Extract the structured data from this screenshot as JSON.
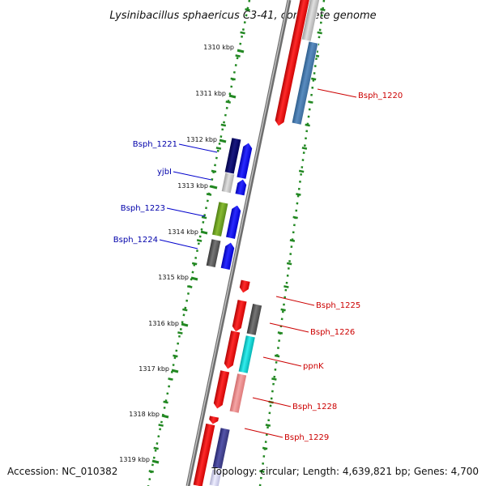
{
  "title": "Lysinibacillus sphaericus C3-41, complete genome",
  "footer": {
    "accession": "Accession: NC_010382",
    "topology": "Topology: circular; Length: 4,639,821 bp; Genes: 4,700"
  },
  "ticks": [
    "1310 kbp",
    "1311 kbp",
    "1312 kbp",
    "1313 kbp",
    "1314 kbp",
    "1315 kbp",
    "1316 kbp",
    "1317 kbp",
    "1318 kbp",
    "1319 kbp"
  ],
  "genes_reverse": [
    {
      "label": "Bsph_1221",
      "color": "#0000aa"
    },
    {
      "label": "yjbI",
      "color": "#0000aa"
    },
    {
      "label": "Bsph_1223",
      "color": "#0000aa"
    },
    {
      "label": "Bsph_1224",
      "color": "#0000aa"
    }
  ],
  "genes_forward": [
    {
      "label": "Bsph_1220",
      "color": "#cc0000"
    },
    {
      "label": "Bsph_1225",
      "color": "#cc0000"
    },
    {
      "label": "Bsph_1226",
      "color": "#cc0000"
    },
    {
      "label": "ppnK",
      "color": "#cc0000"
    },
    {
      "label": "Bsph_1228",
      "color": "#cc0000"
    },
    {
      "label": "Bsph_1229",
      "color": "#cc0000"
    }
  ],
  "colors": {
    "backbone": "#888888",
    "tick_marks": "#228822",
    "forward_strand": "#ff0000",
    "reverse_strand": "#0000ff",
    "gene_dark_blue": "#000066",
    "gene_steel_blue": "#4477aa",
    "gene_olive": "#669922",
    "gene_gray": "#555555",
    "gene_cyan": "#00cccc",
    "gene_pink": "#ee8888",
    "gene_light_gray": "#cccccc",
    "gene_navy": "#333388"
  }
}
